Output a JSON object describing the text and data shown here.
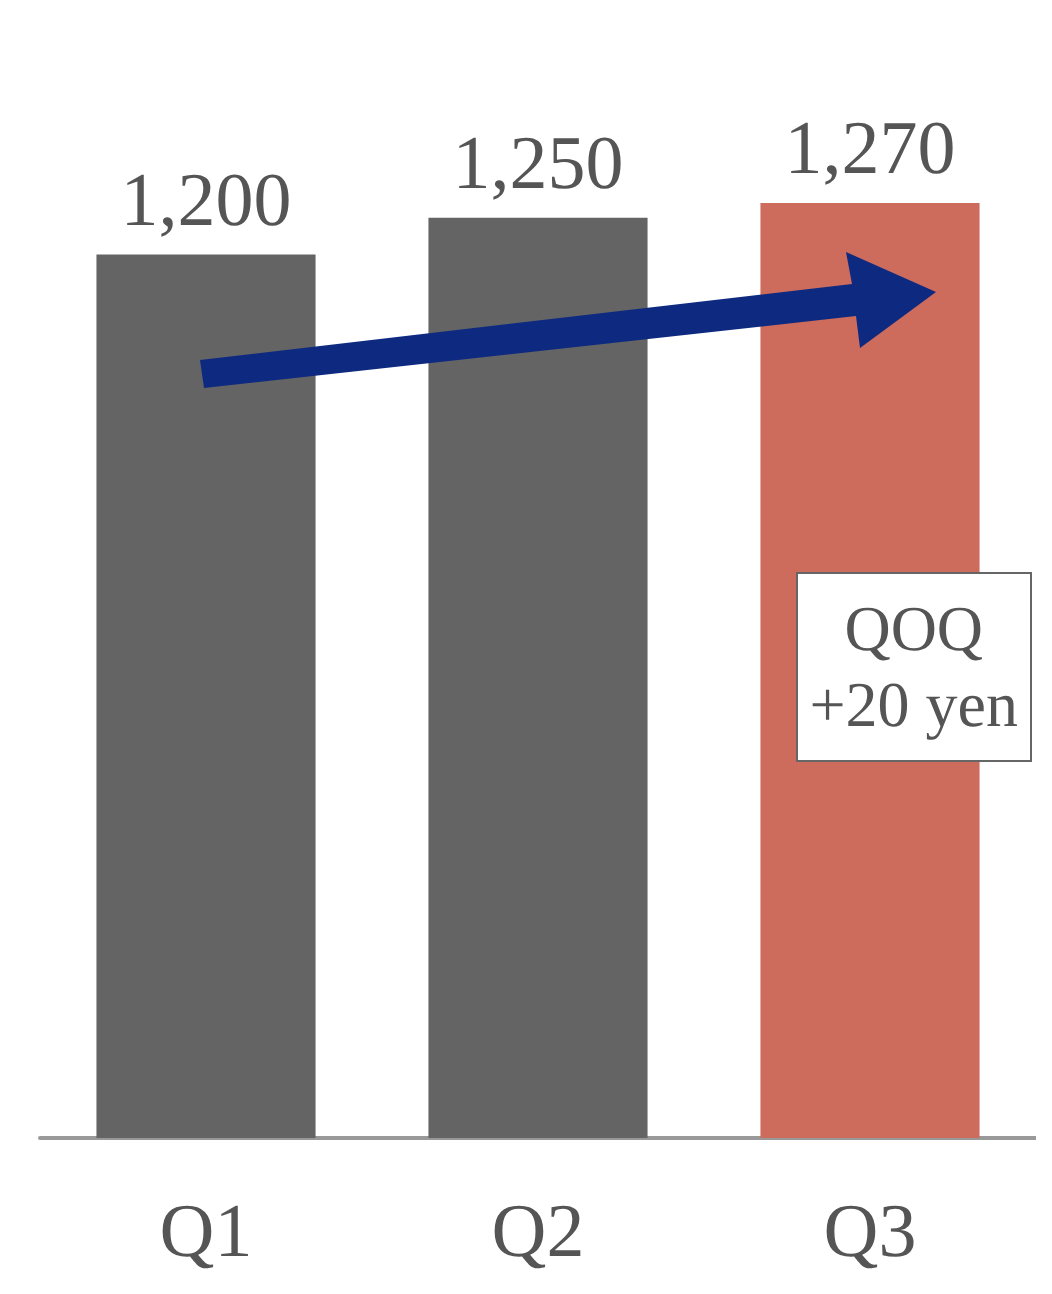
{
  "chart_data": {
    "type": "bar",
    "categories": [
      "Q1",
      "Q2",
      "Q3"
    ],
    "values": [
      1200,
      1250,
      1270
    ],
    "value_labels": [
      "1,200",
      "1,250",
      "1,270"
    ],
    "colors": [
      "#646464",
      "#646464",
      "#cd6b5c"
    ],
    "annotations": [
      "QOQ\n+20 yen"
    ]
  }
}
